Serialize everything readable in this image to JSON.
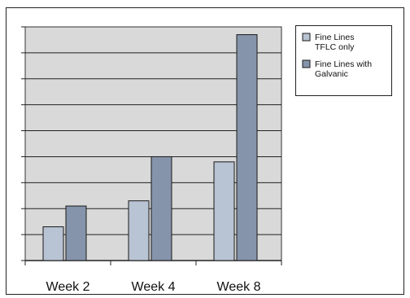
{
  "chart_data": {
    "type": "bar",
    "categories": [
      "Week 2",
      "Week 4",
      "Week 8"
    ],
    "series": [
      {
        "name": "Fine Lines TFLC only",
        "name_lines": [
          "Fine Lines",
          "TFLC only"
        ],
        "color": "#b8c3d3",
        "values": [
          13,
          23,
          38
        ]
      },
      {
        "name": "Fine Lines with Galvanic",
        "name_lines": [
          "Fine Lines with",
          "Galvanic"
        ],
        "color": "#8594aa",
        "values": [
          21,
          40,
          87
        ]
      }
    ],
    "ylim": [
      0,
      90
    ],
    "y_gridlines": [
      10,
      20,
      30,
      40,
      50,
      60,
      70,
      80,
      90
    ],
    "y_tick_labels_shown": false,
    "plot_background": "#d9d9d9",
    "grid": true,
    "legend_position": "top-right",
    "title": "",
    "xlabel": "",
    "ylabel": ""
  }
}
